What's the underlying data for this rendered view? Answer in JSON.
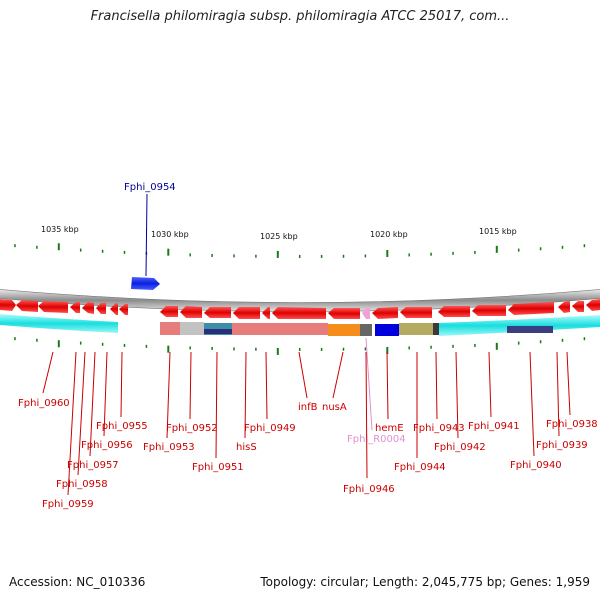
{
  "title": "Francisella philomiragia subsp. philomiragia ATCC 25017, com...",
  "colors": {
    "gene": "#dd1111",
    "gene_label": "#cc0000",
    "rna_label": "#e090d0",
    "highlight": "#000099",
    "highlight_gene": "#1a2fe0",
    "backbone": "#999999",
    "tick": "#1a7a1a"
  },
  "highlight_gene": "Fphi_0954",
  "ruler": [
    {
      "label": "1035 kbp"
    },
    {
      "label": "1030 kbp"
    },
    {
      "label": "1025 kbp"
    },
    {
      "label": "1020 kbp"
    },
    {
      "label": "1015 kbp"
    }
  ],
  "gene_labels": [
    {
      "text": "Fphi_0960"
    },
    {
      "text": "Fphi_0959"
    },
    {
      "text": "Fphi_0958"
    },
    {
      "text": "Fphi_0957"
    },
    {
      "text": "Fphi_0956"
    },
    {
      "text": "Fphi_0955"
    },
    {
      "text": "Fphi_0953"
    },
    {
      "text": "Fphi_0952"
    },
    {
      "text": "Fphi_0951"
    },
    {
      "text": "hisS"
    },
    {
      "text": "Fphi_0949"
    },
    {
      "text": "infB"
    },
    {
      "text": "nusA"
    },
    {
      "text": "Fphi_R0004"
    },
    {
      "text": "hemE"
    },
    {
      "text": "Fphi_0946"
    },
    {
      "text": "Fphi_0944"
    },
    {
      "text": "Fphi_0943"
    },
    {
      "text": "Fphi_0942"
    },
    {
      "text": "Fphi_0941"
    },
    {
      "text": "Fphi_0940"
    },
    {
      "text": "Fphi_0939"
    },
    {
      "text": "Fphi_0938"
    }
  ],
  "footer": {
    "accession": "Accession: NC_010336",
    "summary": "Topology: circular; Length: 2,045,775 bp; Genes: 1,959"
  }
}
